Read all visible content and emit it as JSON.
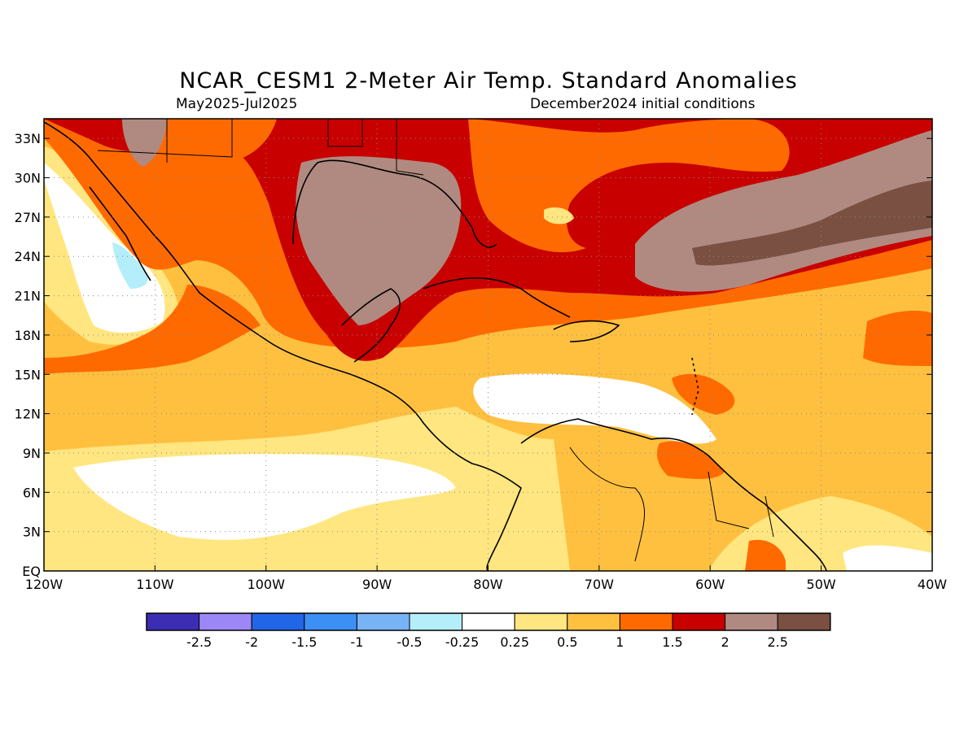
{
  "title": "NCAR_CESM1 2-Meter Air Temp. Standard Anomalies",
  "subtitle_left": "May2025-Jul2025",
  "subtitle_right": "December2024 initial conditions",
  "map": {
    "lat_labels": [
      "33N",
      "30N",
      "27N",
      "24N",
      "21N",
      "18N",
      "15N",
      "12N",
      "9N",
      "6N",
      "3N",
      "EQ"
    ],
    "lat_values": [
      33,
      30,
      27,
      24,
      21,
      18,
      15,
      12,
      9,
      6,
      3,
      0
    ],
    "lon_labels": [
      "120W",
      "110W",
      "100W",
      "90W",
      "80W",
      "70W",
      "60W",
      "50W",
      "40W"
    ],
    "lon_values": [
      -120,
      -110,
      -100,
      -90,
      -80,
      -70,
      -60,
      -50,
      -40
    ],
    "lat_range": [
      0,
      34.5
    ],
    "lon_range": [
      -120,
      -40
    ],
    "grid": "dotted"
  },
  "colorbar": {
    "colors": [
      "#3d2db2",
      "#9b87f5",
      "#2266e8",
      "#3c8ff5",
      "#78b4f5",
      "#b4eefa",
      "#ffffff",
      "#ffe680",
      "#ffc040",
      "#ff6a00",
      "#c80000",
      "#b08a80",
      "#7a5042"
    ],
    "labels": [
      "-2.5",
      "-2",
      "-1.5",
      "-1",
      "-0.5",
      "-0.25",
      "0.25",
      "0.5",
      "1",
      "1.5",
      "2",
      "2.5"
    ]
  }
}
